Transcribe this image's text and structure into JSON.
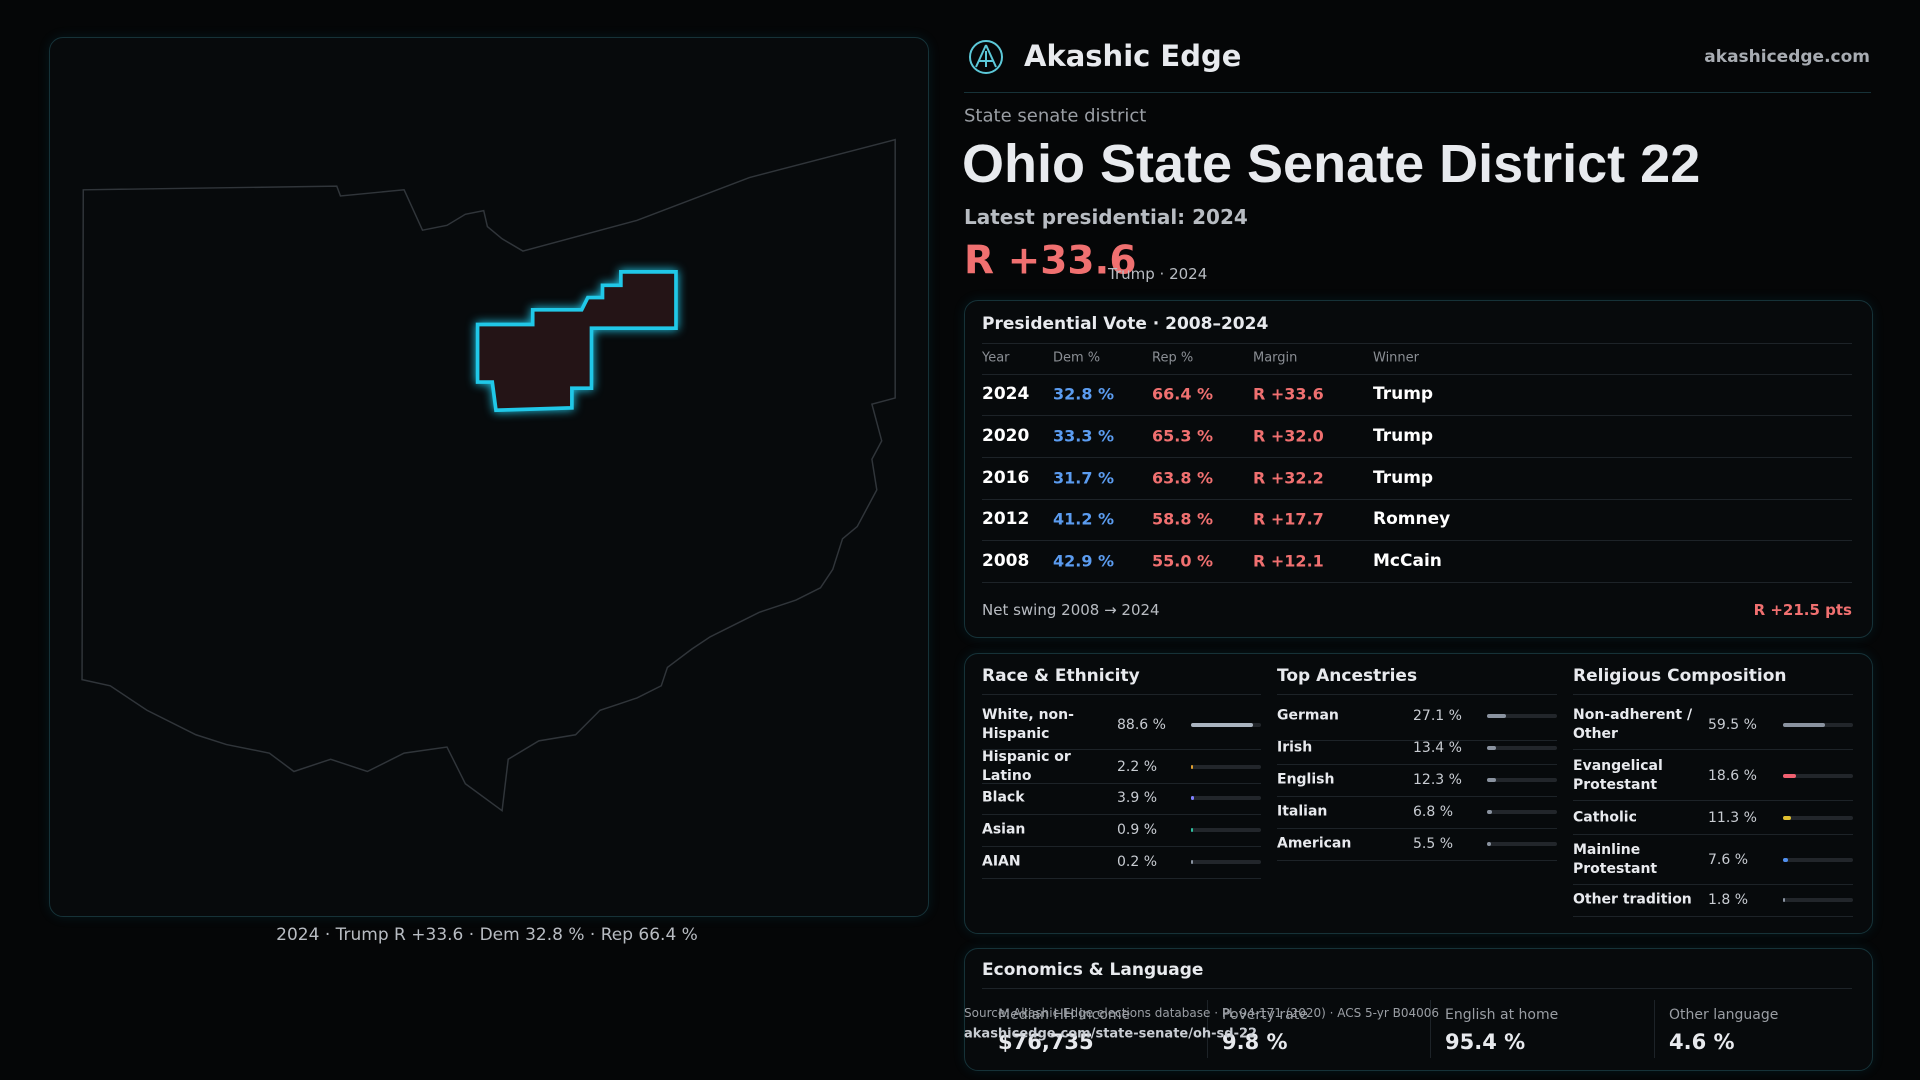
{
  "brand": "Akashic Edge",
  "site": "akashicedge.com",
  "map_caption": "2024 · Trump R +33.6 · Dem 32.8 % · Rep 66.4 %",
  "kicker": "State senate district",
  "title": "Ohio State Senate District 22",
  "latest": "Latest presidential: 2024",
  "margin": "R +33.6",
  "margin_note": "Trump · 2024",
  "presidential": {
    "title": "Presidential Vote · 2008–2024",
    "columns": [
      "Year",
      "Dem %",
      "Rep %",
      "Margin",
      "Winner"
    ],
    "rows": [
      [
        "2024",
        "32.8 %",
        "66.4 %",
        "R +33.6",
        "Trump"
      ],
      [
        "2020",
        "33.3 %",
        "65.3 %",
        "R +32.0",
        "Trump"
      ],
      [
        "2016",
        "31.7 %",
        "63.8 %",
        "R +32.2",
        "Trump"
      ],
      [
        "2012",
        "41.2 %",
        "58.8 %",
        "R +17.7",
        "Romney"
      ],
      [
        "2008",
        "42.9 %",
        "55.0 %",
        "R +12.1",
        "McCain"
      ]
    ],
    "net_swing_label": "Net swing 2008 → 2024",
    "net_swing_value": "R +21.5 pts"
  },
  "race": {
    "title": "Race & Ethnicity",
    "labels": [
      "White, non-Hispanic",
      "Hispanic or Latino",
      "Black",
      "Asian",
      "AIAN"
    ],
    "values": [
      88.6,
      2.2,
      3.9,
      0.9,
      0.2
    ],
    "value_labels": [
      "88.6 %",
      "2.2 %",
      "3.9 %",
      "0.9 %",
      "0.2 %"
    ],
    "colors": [
      "#aab4c0",
      "#e0a030",
      "#8080ff",
      "#30c0a0",
      "#8a93a0"
    ]
  },
  "ancestry": {
    "title": "Top Ancestries",
    "labels": [
      "German",
      "Irish",
      "English",
      "Italian",
      "American"
    ],
    "values": [
      27.1,
      13.4,
      12.3,
      6.8,
      5.5
    ],
    "value_labels": [
      "27.1 %",
      "13.4 %",
      "12.3 %",
      "6.8 %",
      "5.5 %"
    ],
    "colors": [
      "#8a93a0",
      "#8a93a0",
      "#8a93a0",
      "#8a93a0",
      "#8a93a0"
    ]
  },
  "religion": {
    "title": "Religious Composition",
    "labels": [
      "Non-adherent / Other",
      "Evangelical Protestant",
      "Catholic",
      "Mainline Protestant",
      "Other tradition"
    ],
    "values": [
      59.5,
      18.6,
      11.3,
      7.6,
      1.8
    ],
    "value_labels": [
      "59.5 %",
      "18.6 %",
      "11.3 %",
      "7.6 %",
      "1.8 %"
    ],
    "colors": [
      "#8a93a0",
      "#f06070",
      "#e0c030",
      "#5090f0",
      "#8a93a0"
    ]
  },
  "economics": {
    "title": "Economics & Language",
    "items": [
      {
        "label": "Median HH income",
        "value": "$76,735"
      },
      {
        "label": "Poverty rate",
        "value": "9.8 %"
      },
      {
        "label": "English at home",
        "value": "95.4 %"
      },
      {
        "label": "Other language",
        "value": "4.6 %"
      }
    ]
  },
  "source": "Source: Akashic Edge elections database · PL 94-171 (2020) · ACS 5-yr B04006",
  "source_url": "akashicedge.com/state-senate/oh-sd-22"
}
